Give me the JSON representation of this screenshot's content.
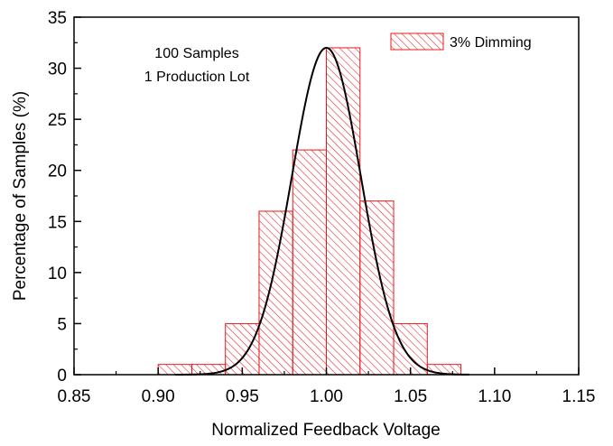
{
  "chart_data": {
    "type": "bar",
    "subtype": "histogram",
    "xlabel": "Normalized Feedback Voltage",
    "ylabel": "Percentage of Samples (%)",
    "xlim": [
      0.85,
      1.15
    ],
    "ylim": [
      0,
      35
    ],
    "xticks": [
      "0.85",
      "0.90",
      "0.95",
      "1.00",
      "1.05",
      "1.10",
      "1.15"
    ],
    "yticks": [
      "0",
      "5",
      "10",
      "15",
      "20",
      "25",
      "30",
      "35"
    ],
    "bins": [
      {
        "start": 0.9,
        "end": 0.92,
        "value": 1
      },
      {
        "start": 0.92,
        "end": 0.94,
        "value": 1
      },
      {
        "start": 0.94,
        "end": 0.96,
        "value": 5
      },
      {
        "start": 0.96,
        "end": 0.98,
        "value": 16
      },
      {
        "start": 0.98,
        "end": 1.0,
        "value": 22
      },
      {
        "start": 1.0,
        "end": 1.02,
        "value": 32
      },
      {
        "start": 1.02,
        "end": 1.04,
        "value": 17
      },
      {
        "start": 1.04,
        "end": 1.06,
        "value": 5
      },
      {
        "start": 1.06,
        "end": 1.08,
        "value": 1
      }
    ],
    "fit_curve": {
      "type": "gaussian",
      "mean": 1.0,
      "sigma": 0.0205,
      "peak": 32,
      "x_range": [
        0.91,
        1.085
      ],
      "color": "#000000"
    },
    "series": [
      {
        "name": "3% Dimming",
        "color": "#e8191e",
        "fill": "diagonal-hatch"
      }
    ],
    "legend_position": "top-right",
    "grid": false,
    "annotations": [
      "100 Samples",
      "1 Production Lot"
    ]
  }
}
